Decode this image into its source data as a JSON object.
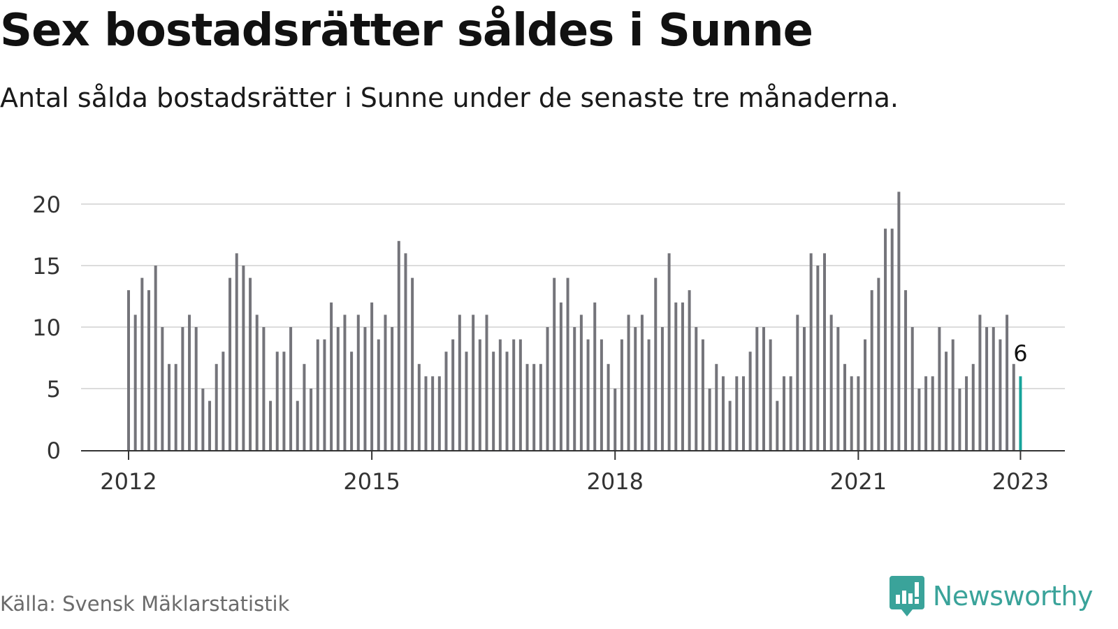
{
  "title": "Sex bostadsrätter såldes i Sunne",
  "subtitle": "Antal sålda bostadsrätter i Sunne under de senaste tre månaderna.",
  "source": "Källa: Svensk Mäklarstatistik",
  "brand": {
    "name": "Newsworthy",
    "icon": "newsworthy-logo-icon",
    "color": "#3aa39a"
  },
  "chart_data": {
    "type": "bar",
    "x_start": "2012-01",
    "x_end": "2023-01",
    "x_interval": "month",
    "x_ticks": [
      {
        "date": "2012-01",
        "label": "2012"
      },
      {
        "date": "2015-01",
        "label": "2015"
      },
      {
        "date": "2018-01",
        "label": "2018"
      },
      {
        "date": "2021-01",
        "label": "2021"
      },
      {
        "date": "2023-01",
        "label": "2023"
      }
    ],
    "y_ticks": [
      0,
      5,
      10,
      15,
      20
    ],
    "ylim": [
      0,
      20
    ],
    "grid": true,
    "bar_color": "#74747a",
    "highlight_color": "#16a39a",
    "highlight_last": true,
    "last_value_label": "6",
    "values": [
      13,
      11,
      14,
      13,
      15,
      10,
      7,
      7,
      10,
      11,
      10,
      5,
      4,
      7,
      8,
      14,
      16,
      15,
      14,
      11,
      10,
      4,
      8,
      8,
      10,
      4,
      7,
      5,
      9,
      9,
      12,
      10,
      11,
      8,
      11,
      10,
      12,
      9,
      11,
      10,
      17,
      16,
      14,
      7,
      6,
      6,
      6,
      8,
      9,
      11,
      8,
      11,
      9,
      11,
      8,
      9,
      8,
      9,
      9,
      7,
      7,
      7,
      10,
      14,
      12,
      14,
      10,
      11,
      9,
      12,
      9,
      7,
      5,
      9,
      11,
      10,
      11,
      9,
      14,
      10,
      16,
      12,
      12,
      13,
      10,
      9,
      5,
      7,
      6,
      4,
      6,
      6,
      8,
      10,
      10,
      9,
      4,
      6,
      6,
      11,
      10,
      16,
      15,
      16,
      11,
      10,
      7,
      6,
      6,
      9,
      13,
      14,
      18,
      18,
      21,
      13,
      10,
      5,
      6,
      6,
      10,
      8,
      9,
      5,
      6,
      7,
      11,
      10,
      10,
      9,
      11,
      7,
      6
    ]
  }
}
